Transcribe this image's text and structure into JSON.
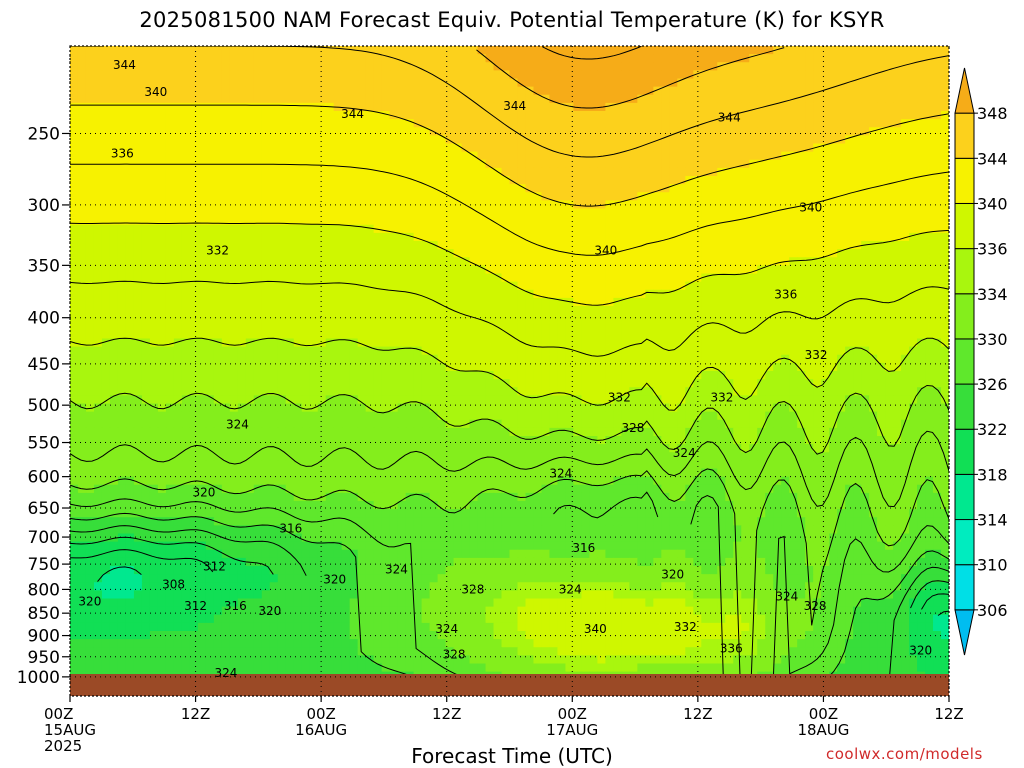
{
  "title": "2025081500 NAM Forecast Equiv. Potential Temperature (K) for KSYR",
  "credit": "coolwx.com/models",
  "chart_data": {
    "type": "heatmap",
    "title": "2025081500 NAM Forecast Equiv. Potential Temperature (K) for KSYR",
    "xlabel": "Forecast Time (UTC)",
    "ylabel": "",
    "y_axis": {
      "scale": "log-pressure",
      "range_hPa": [
        1050,
        200
      ],
      "reversed": true,
      "ticks": [
        250,
        300,
        350,
        400,
        450,
        500,
        550,
        600,
        650,
        700,
        750,
        800,
        850,
        900,
        950,
        1000
      ]
    },
    "x_axis": {
      "range_hours": [
        0,
        84
      ],
      "ticks": [
        {
          "hour": 0,
          "lines": [
            "00Z",
            "15AUG",
            "2025"
          ]
        },
        {
          "hour": 12,
          "lines": [
            "12Z"
          ]
        },
        {
          "hour": 24,
          "lines": [
            "00Z",
            "16AUG"
          ]
        },
        {
          "hour": 36,
          "lines": [
            "12Z"
          ]
        },
        {
          "hour": 48,
          "lines": [
            "00Z",
            "17AUG"
          ]
        },
        {
          "hour": 60,
          "lines": [
            "12Z"
          ]
        },
        {
          "hour": 72,
          "lines": [
            "00Z",
            "18AUG"
          ]
        },
        {
          "hour": 84,
          "lines": [
            "12Z"
          ]
        }
      ]
    },
    "grid": true,
    "colorbar": {
      "ticks": [
        306,
        310,
        314,
        318,
        322,
        326,
        330,
        334,
        336,
        340,
        344,
        348
      ],
      "colors": [
        "#00bdf0",
        "#00dfe6",
        "#00ecbf",
        "#00e88f",
        "#11df55",
        "#37de3a",
        "#5fe82c",
        "#84ee1c",
        "#a9f60e",
        "#cff700",
        "#f7f200",
        "#fcd11c",
        "#f6ac18"
      ]
    },
    "contour_labels": [
      {
        "t": 5.2,
        "p": 210,
        "v": "344"
      },
      {
        "t": 8.2,
        "p": 225,
        "v": "340"
      },
      {
        "t": 27,
        "p": 238,
        "v": "344"
      },
      {
        "t": 42.5,
        "p": 233,
        "v": "344"
      },
      {
        "t": 63,
        "p": 240,
        "v": "344"
      },
      {
        "t": 5,
        "p": 263,
        "v": "336"
      },
      {
        "t": 70.8,
        "p": 302,
        "v": "340"
      },
      {
        "t": 14.1,
        "p": 337,
        "v": "332"
      },
      {
        "t": 51.2,
        "p": 337,
        "v": "340"
      },
      {
        "t": 68.4,
        "p": 377,
        "v": "336"
      },
      {
        "t": 71.3,
        "p": 440,
        "v": "332"
      },
      {
        "t": 52.5,
        "p": 490,
        "v": "332"
      },
      {
        "t": 62.3,
        "p": 490,
        "v": "332"
      },
      {
        "t": 16,
        "p": 525,
        "v": "324"
      },
      {
        "t": 53.8,
        "p": 530,
        "v": "328"
      },
      {
        "t": 58.7,
        "p": 565,
        "v": "324"
      },
      {
        "t": 46.9,
        "p": 595,
        "v": "324"
      },
      {
        "t": 12.8,
        "p": 625,
        "v": "320"
      },
      {
        "t": 21.1,
        "p": 685,
        "v": "316"
      },
      {
        "t": 49.1,
        "p": 720,
        "v": "316"
      },
      {
        "t": 13.8,
        "p": 755,
        "v": "312"
      },
      {
        "t": 31.2,
        "p": 760,
        "v": "324"
      },
      {
        "t": 25.3,
        "p": 780,
        "v": "320"
      },
      {
        "t": 57.6,
        "p": 770,
        "v": "320"
      },
      {
        "t": 9.9,
        "p": 790,
        "v": "308"
      },
      {
        "t": 38.5,
        "p": 800,
        "v": "328"
      },
      {
        "t": 47.8,
        "p": 800,
        "v": "324"
      },
      {
        "t": 68.5,
        "p": 815,
        "v": "324"
      },
      {
        "t": 71.2,
        "p": 835,
        "v": "328"
      },
      {
        "t": 1.9,
        "p": 825,
        "v": "320"
      },
      {
        "t": 12,
        "p": 835,
        "v": "312"
      },
      {
        "t": 15.8,
        "p": 835,
        "v": "316"
      },
      {
        "t": 19.1,
        "p": 845,
        "v": "320"
      },
      {
        "t": 58.8,
        "p": 880,
        "v": "332"
      },
      {
        "t": 36,
        "p": 885,
        "v": "324"
      },
      {
        "t": 50.2,
        "p": 885,
        "v": "340"
      },
      {
        "t": 36.7,
        "p": 945,
        "v": "328"
      },
      {
        "t": 63.2,
        "p": 930,
        "v": "336"
      },
      {
        "t": 81.3,
        "p": 935,
        "v": "320"
      },
      {
        "t": 14.9,
        "p": 990,
        "v": "324"
      }
    ]
  }
}
